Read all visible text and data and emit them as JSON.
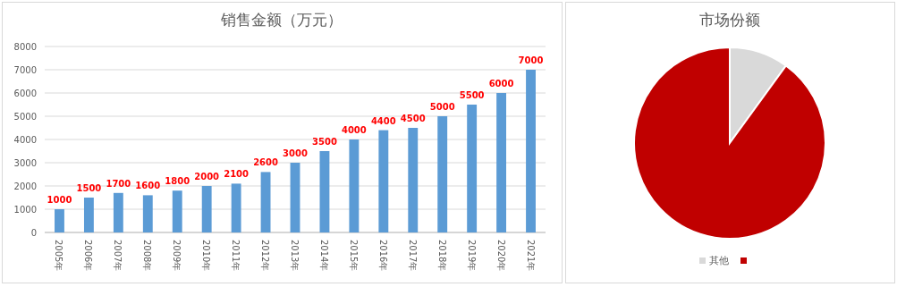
{
  "chart_data": [
    {
      "type": "bar",
      "title": "销售金额（万元）",
      "categories": [
        "2005年",
        "2006年",
        "2007年",
        "2008年",
        "2009年",
        "2010年",
        "2011年",
        "2012年",
        "2013年",
        "2014年",
        "2015年",
        "2016年",
        "2017年",
        "2018年",
        "2019年",
        "2020年",
        "2021年"
      ],
      "values": [
        1000,
        1500,
        1700,
        1600,
        1800,
        2000,
        2100,
        2600,
        3000,
        3500,
        4000,
        4400,
        4500,
        5000,
        5500,
        6000,
        7000
      ],
      "color": "#5b9bd5",
      "ylim": [
        0,
        8000
      ],
      "yticks": [
        0,
        1000,
        2000,
        3000,
        4000,
        5000,
        6000,
        7000,
        8000
      ],
      "grid": "y",
      "data_labels": true
    },
    {
      "type": "pie",
      "title": "市场份额",
      "categories": [
        "其他",
        null
      ],
      "values": [
        10,
        90
      ],
      "colors": [
        "#d9d9d9",
        "#c00000"
      ],
      "legend": "bottom"
    }
  ]
}
